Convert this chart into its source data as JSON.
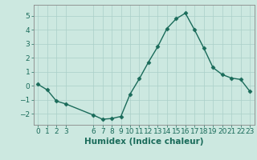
{
  "x": [
    0,
    1,
    2,
    3,
    6,
    7,
    8,
    9,
    10,
    11,
    12,
    13,
    14,
    15,
    16,
    17,
    18,
    19,
    20,
    21,
    22,
    23
  ],
  "y": [
    0.1,
    -0.3,
    -1.1,
    -1.3,
    -2.1,
    -2.4,
    -2.35,
    -2.2,
    -0.6,
    0.5,
    1.7,
    2.8,
    4.1,
    4.8,
    5.2,
    4.0,
    2.7,
    1.3,
    0.8,
    0.55,
    0.45,
    -0.4
  ],
  "line_color": "#1a6b5a",
  "marker": "D",
  "marker_size": 2.5,
  "bg_color": "#cce8e0",
  "grid_color": "#aacfc8",
  "xlabel": "Humidex (Indice chaleur)",
  "xlim": [
    -0.5,
    23.5
  ],
  "ylim": [
    -2.8,
    5.8
  ],
  "xticks": [
    0,
    1,
    2,
    3,
    6,
    7,
    8,
    9,
    10,
    11,
    12,
    13,
    14,
    15,
    16,
    17,
    18,
    19,
    20,
    21,
    22,
    23
  ],
  "yticks": [
    -2,
    -1,
    0,
    1,
    2,
    3,
    4,
    5
  ],
  "xlabel_fontsize": 7.5,
  "tick_fontsize": 6.5,
  "tick_color": "#1a6b5a",
  "spine_color": "#888888",
  "linewidth": 1.0
}
